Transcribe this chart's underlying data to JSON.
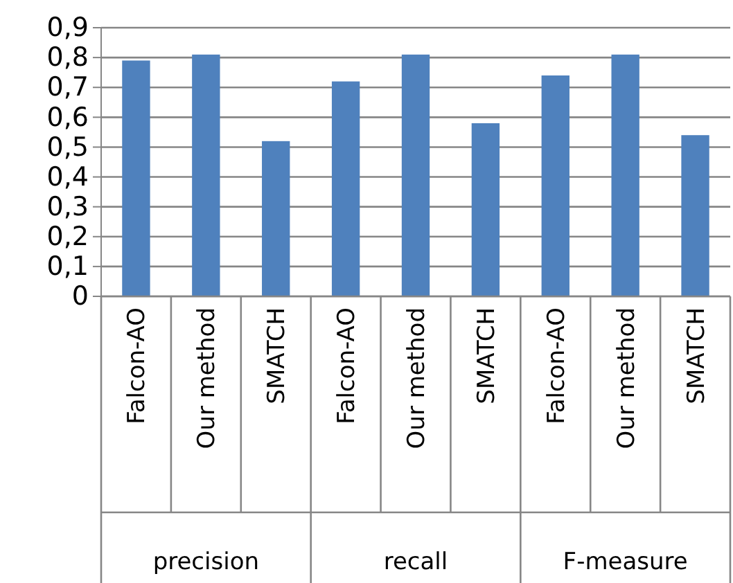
{
  "chart_data": {
    "type": "bar",
    "categories": [
      "Falcon-AO",
      "Our method",
      "SMATCH",
      "Falcon-AO",
      "Our method",
      "SMATCH",
      "Falcon-AO",
      "Our method",
      "SMATCH"
    ],
    "values": [
      0.79,
      0.81,
      0.52,
      0.72,
      0.81,
      0.58,
      0.74,
      0.81,
      0.54
    ],
    "color": "#4f81bd",
    "ylim": [
      0,
      0.9
    ],
    "yticks": [
      0,
      {
        "value": 0.1,
        "label": "0,1"
      },
      {
        "value": 0.2,
        "label": "0,2"
      },
      {
        "value": 0.3,
        "label": "0,3"
      },
      {
        "value": 0.4,
        "label": "0,4"
      },
      {
        "value": 0.5,
        "label": "0,5"
      },
      {
        "value": 0.6,
        "label": "0,6"
      },
      {
        "value": 0.7,
        "label": "0,7"
      },
      {
        "value": 0.8,
        "label": "0,8"
      },
      {
        "value": 0.9,
        "label": "0,9"
      }
    ],
    "grid": "y",
    "annotations": [
      "precision",
      "recall",
      "F-measure"
    ]
  }
}
